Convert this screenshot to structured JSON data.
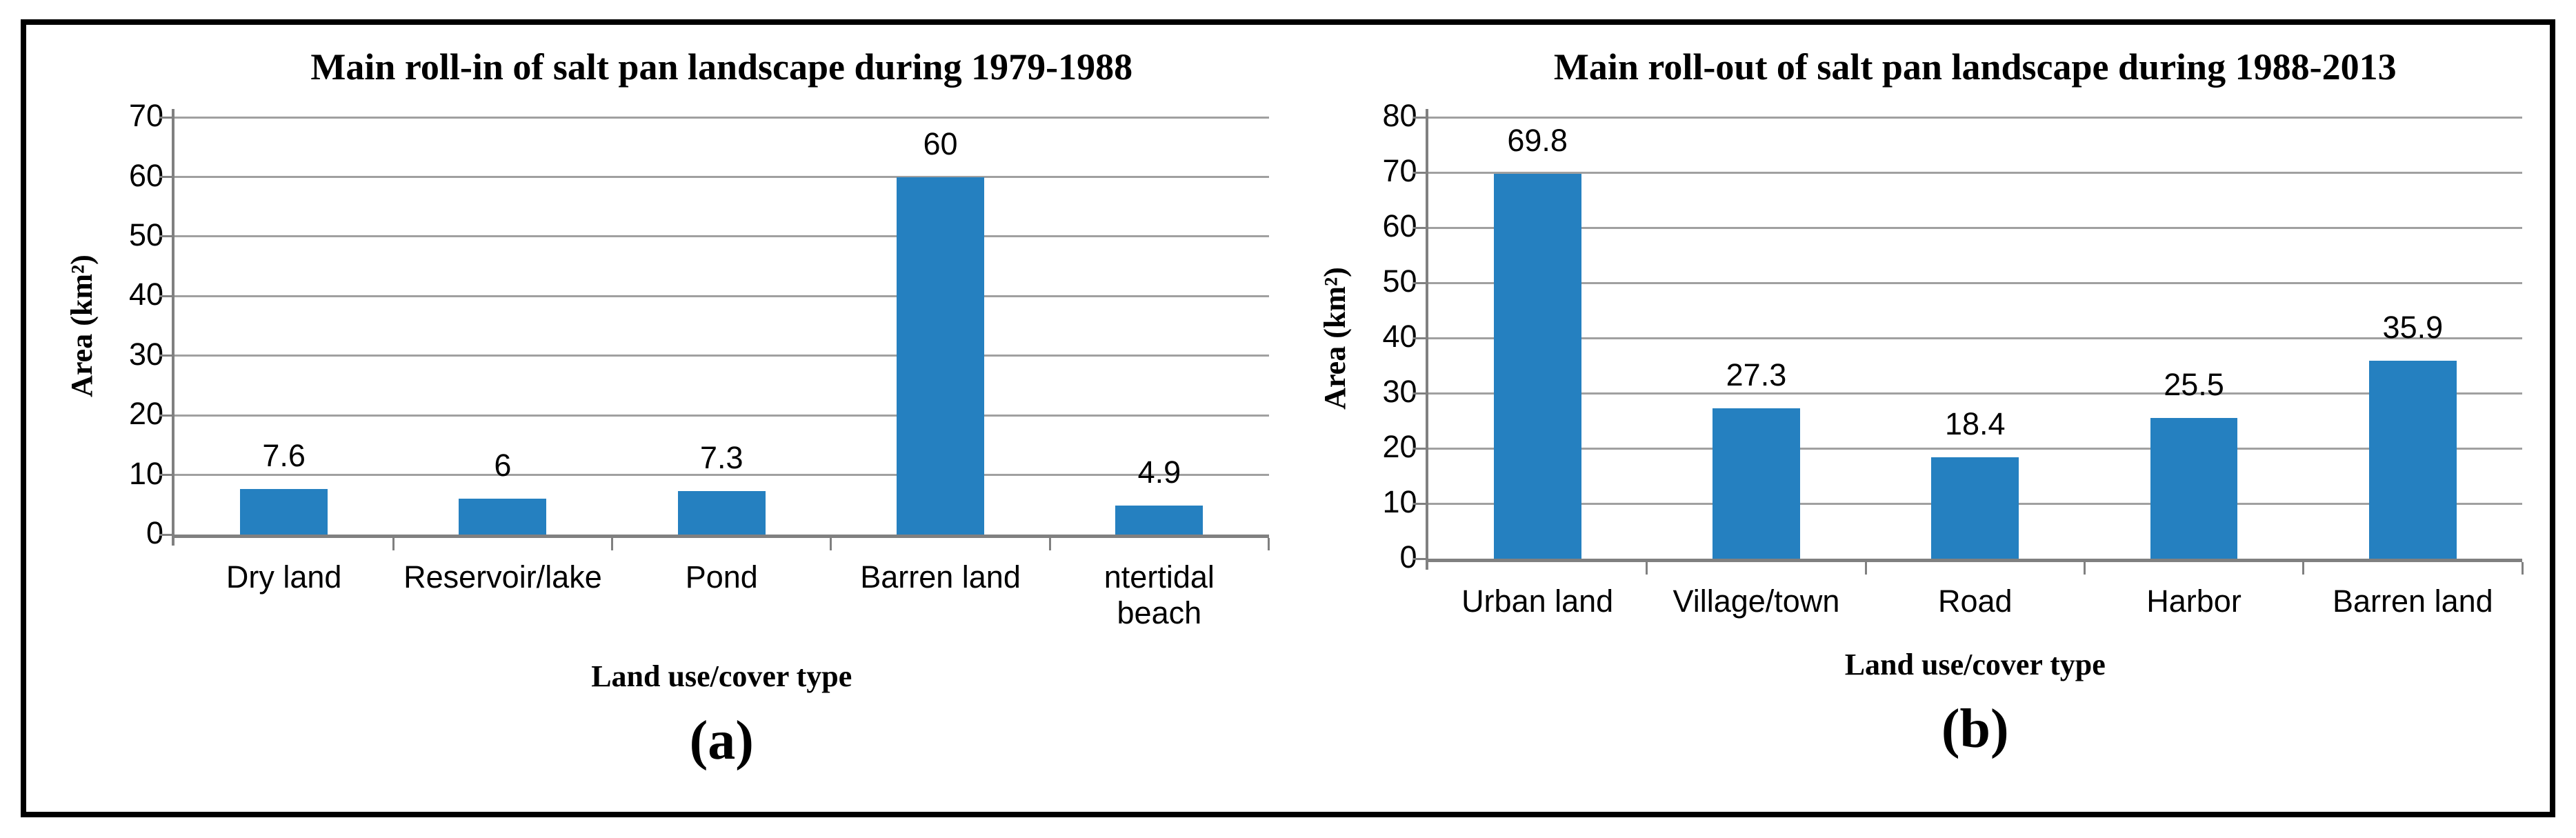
{
  "colors": {
    "bar": "#2580C0",
    "gridline": "#A0A0A0",
    "axis_line": "#808080",
    "outer_border": "#000000"
  },
  "chart_data": [
    {
      "type": "bar",
      "title": "Main roll-in of salt pan landscape during 1979-1988",
      "xlabel": "Land use/cover type",
      "ylabel": "Area (km²)",
      "categories": [
        "Dry land",
        "Reservoir/lake",
        "Pond",
        "Barren land",
        "ntertidal\nbeach"
      ],
      "values": [
        7.6,
        6,
        7.3,
        60,
        4.9
      ],
      "value_labels": [
        "7.6",
        "6",
        "7.3",
        "60",
        "4.9"
      ],
      "ylim": [
        0,
        70
      ],
      "yticks": [
        0,
        10,
        20,
        30,
        40,
        50,
        60,
        70
      ],
      "grid": true,
      "legend": "none",
      "caption": "(a)"
    },
    {
      "type": "bar",
      "title": "Main roll-out of salt pan landscape during 1988-2013",
      "xlabel": "Land use/cover type",
      "ylabel": "Area (km²)",
      "categories": [
        "Urban land",
        "Village/town",
        "Road",
        "Harbor",
        "Barren land"
      ],
      "values": [
        69.8,
        27.3,
        18.4,
        25.5,
        35.9
      ],
      "value_labels": [
        "69.8",
        "27.3",
        "18.4",
        "25.5",
        "35.9"
      ],
      "ylim": [
        0,
        80
      ],
      "yticks": [
        0,
        10,
        20,
        30,
        40,
        50,
        60,
        70,
        80
      ],
      "grid": true,
      "legend": "none",
      "caption": "(b)"
    }
  ]
}
